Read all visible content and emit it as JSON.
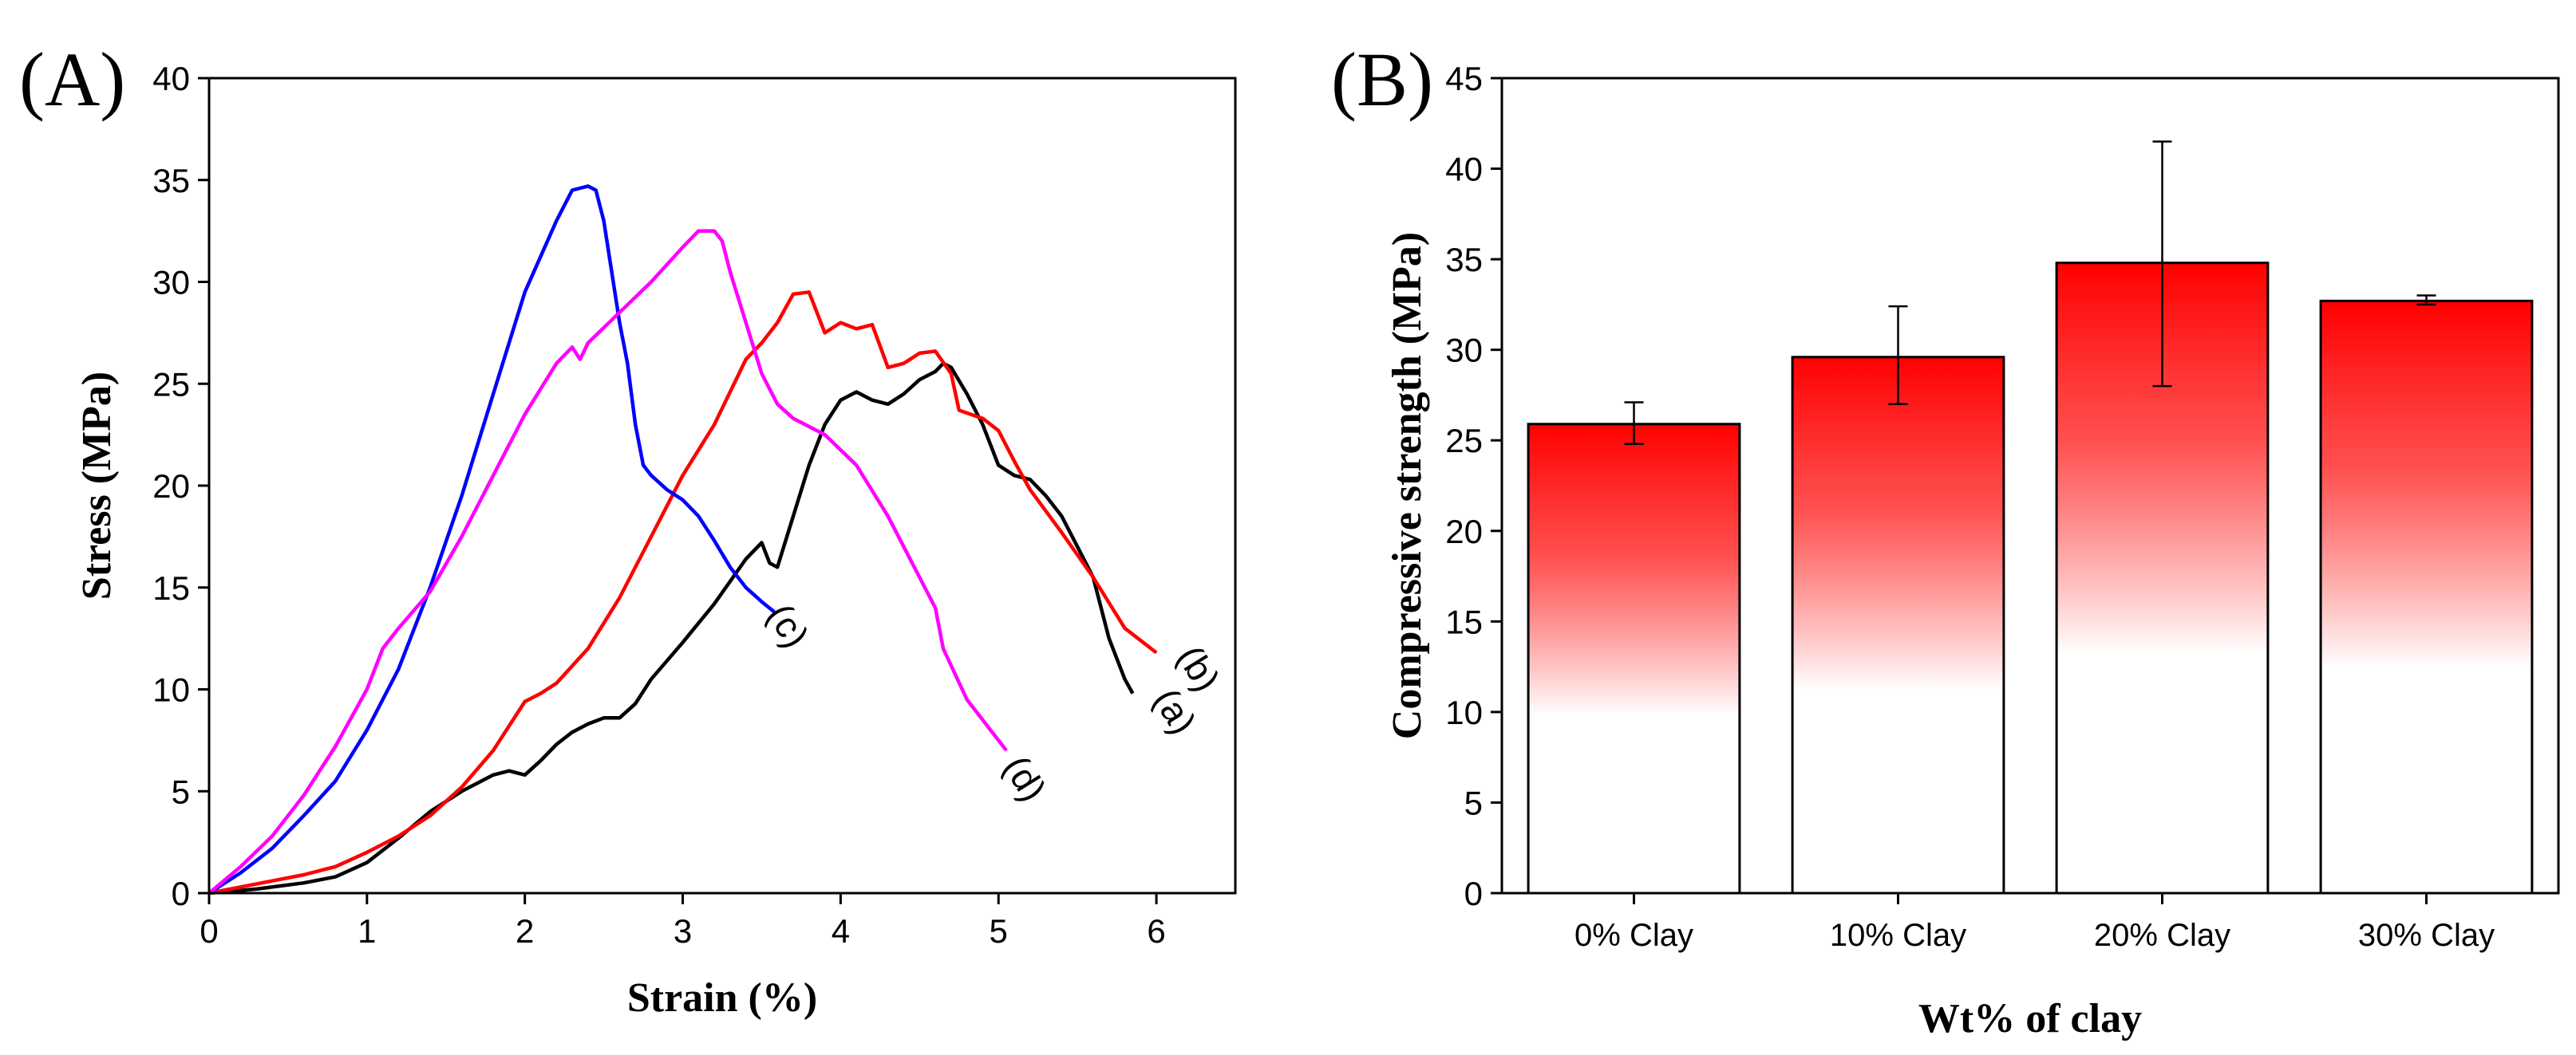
{
  "chart_data": [
    {
      "type": "line",
      "panel_label": "(A)",
      "xlabel": "Strain (%)",
      "ylabel": "Stress (MPa)",
      "xlim": [
        0,
        6.5
      ],
      "ylim": [
        0,
        40
      ],
      "xticks": [
        0,
        1,
        2,
        3,
        4,
        5,
        6
      ],
      "yticks": [
        0,
        5,
        10,
        15,
        20,
        25,
        30,
        35,
        40
      ],
      "grid": false,
      "series": [
        {
          "label": "(a)",
          "color": "#000000",
          "label_at": [
            6.05,
            8.6
          ],
          "points": [
            [
              0,
              0
            ],
            [
              0.3,
              0.2
            ],
            [
              0.6,
              0.5
            ],
            [
              0.8,
              0.8
            ],
            [
              1.0,
              1.5
            ],
            [
              1.2,
              2.7
            ],
            [
              1.4,
              4.0
            ],
            [
              1.6,
              5.0
            ],
            [
              1.8,
              5.8
            ],
            [
              1.9,
              6.0
            ],
            [
              2.0,
              5.8
            ],
            [
              2.1,
              6.5
            ],
            [
              2.2,
              7.3
            ],
            [
              2.3,
              7.9
            ],
            [
              2.4,
              8.3
            ],
            [
              2.5,
              8.6
            ],
            [
              2.6,
              8.6
            ],
            [
              2.7,
              9.3
            ],
            [
              2.8,
              10.5
            ],
            [
              3.0,
              12.3
            ],
            [
              3.2,
              14.2
            ],
            [
              3.4,
              16.4
            ],
            [
              3.5,
              17.2
            ],
            [
              3.55,
              16.2
            ],
            [
              3.6,
              16.0
            ],
            [
              3.7,
              18.5
            ],
            [
              3.8,
              21.0
            ],
            [
              3.9,
              23.0
            ],
            [
              4.0,
              24.2
            ],
            [
              4.1,
              24.6
            ],
            [
              4.2,
              24.2
            ],
            [
              4.3,
              24.0
            ],
            [
              4.4,
              24.5
            ],
            [
              4.5,
              25.2
            ],
            [
              4.6,
              25.6
            ],
            [
              4.65,
              26.0
            ],
            [
              4.7,
              25.8
            ],
            [
              4.8,
              24.5
            ],
            [
              4.9,
              23.0
            ],
            [
              5.0,
              21.0
            ],
            [
              5.1,
              20.5
            ],
            [
              5.2,
              20.3
            ],
            [
              5.3,
              19.5
            ],
            [
              5.4,
              18.5
            ],
            [
              5.5,
              17.0
            ],
            [
              5.6,
              15.5
            ],
            [
              5.7,
              12.5
            ],
            [
              5.8,
              10.5
            ],
            [
              5.85,
              9.8
            ]
          ]
        },
        {
          "label": "(b)",
          "color": "#ff0000",
          "label_at": [
            6.2,
            10.7
          ],
          "points": [
            [
              0,
              0
            ],
            [
              0.2,
              0.3
            ],
            [
              0.4,
              0.6
            ],
            [
              0.6,
              0.9
            ],
            [
              0.8,
              1.3
            ],
            [
              1.0,
              2.0
            ],
            [
              1.2,
              2.8
            ],
            [
              1.4,
              3.8
            ],
            [
              1.6,
              5.2
            ],
            [
              1.8,
              7.0
            ],
            [
              2.0,
              9.4
            ],
            [
              2.1,
              9.8
            ],
            [
              2.2,
              10.3
            ],
            [
              2.4,
              12.0
            ],
            [
              2.6,
              14.5
            ],
            [
              2.8,
              17.5
            ],
            [
              3.0,
              20.5
            ],
            [
              3.2,
              23.0
            ],
            [
              3.4,
              26.2
            ],
            [
              3.5,
              27.0
            ],
            [
              3.6,
              28.0
            ],
            [
              3.7,
              29.4
            ],
            [
              3.8,
              29.5
            ],
            [
              3.85,
              28.5
            ],
            [
              3.9,
              27.5
            ],
            [
              4.0,
              28.0
            ],
            [
              4.1,
              27.7
            ],
            [
              4.2,
              27.9
            ],
            [
              4.3,
              25.8
            ],
            [
              4.4,
              26.0
            ],
            [
              4.5,
              26.5
            ],
            [
              4.6,
              26.6
            ],
            [
              4.7,
              25.5
            ],
            [
              4.75,
              23.7
            ],
            [
              4.9,
              23.3
            ],
            [
              5.0,
              22.7
            ],
            [
              5.1,
              21.2
            ],
            [
              5.2,
              19.8
            ],
            [
              5.4,
              17.7
            ],
            [
              5.6,
              15.5
            ],
            [
              5.8,
              13.0
            ],
            [
              6.0,
              11.8
            ]
          ]
        },
        {
          "label": "(c)",
          "color": "#0000ff",
          "label_at": [
            3.6,
            12.8
          ],
          "points": [
            [
              0,
              0
            ],
            [
              0.2,
              1.0
            ],
            [
              0.4,
              2.2
            ],
            [
              0.6,
              3.8
            ],
            [
              0.8,
              5.5
            ],
            [
              1.0,
              8.0
            ],
            [
              1.2,
              11.0
            ],
            [
              1.4,
              15.0
            ],
            [
              1.6,
              19.5
            ],
            [
              1.8,
              24.5
            ],
            [
              2.0,
              29.5
            ],
            [
              2.2,
              33.0
            ],
            [
              2.3,
              34.5
            ],
            [
              2.4,
              34.7
            ],
            [
              2.45,
              34.5
            ],
            [
              2.5,
              33.0
            ],
            [
              2.55,
              30.5
            ],
            [
              2.6,
              28.0
            ],
            [
              2.65,
              26.0
            ],
            [
              2.7,
              23.0
            ],
            [
              2.75,
              21.0
            ],
            [
              2.8,
              20.5
            ],
            [
              2.9,
              19.8
            ],
            [
              3.0,
              19.3
            ],
            [
              3.1,
              18.5
            ],
            [
              3.2,
              17.3
            ],
            [
              3.3,
              16.0
            ],
            [
              3.4,
              15.0
            ],
            [
              3.5,
              14.3
            ],
            [
              3.58,
              13.8
            ]
          ]
        },
        {
          "label": "(d)",
          "color": "#ff00ff",
          "label_at": [
            5.1,
            5.3
          ],
          "points": [
            [
              0,
              0
            ],
            [
              0.2,
              1.3
            ],
            [
              0.4,
              2.8
            ],
            [
              0.6,
              4.8
            ],
            [
              0.8,
              7.2
            ],
            [
              1.0,
              10.0
            ],
            [
              1.1,
              12.0
            ],
            [
              1.2,
              13.0
            ],
            [
              1.4,
              14.8
            ],
            [
              1.6,
              17.5
            ],
            [
              1.8,
              20.5
            ],
            [
              2.0,
              23.5
            ],
            [
              2.2,
              26.0
            ],
            [
              2.3,
              26.8
            ],
            [
              2.35,
              26.2
            ],
            [
              2.4,
              27.0
            ],
            [
              2.6,
              28.5
            ],
            [
              2.8,
              30.0
            ],
            [
              3.0,
              31.7
            ],
            [
              3.1,
              32.5
            ],
            [
              3.2,
              32.5
            ],
            [
              3.25,
              32.0
            ],
            [
              3.3,
              30.5
            ],
            [
              3.4,
              28.0
            ],
            [
              3.5,
              25.5
            ],
            [
              3.6,
              24.0
            ],
            [
              3.7,
              23.3
            ],
            [
              3.9,
              22.5
            ],
            [
              4.1,
              21.0
            ],
            [
              4.3,
              18.5
            ],
            [
              4.5,
              15.5
            ],
            [
              4.6,
              14.0
            ],
            [
              4.65,
              12.0
            ],
            [
              4.8,
              9.5
            ],
            [
              4.95,
              8.0
            ],
            [
              5.05,
              7.0
            ]
          ]
        }
      ]
    },
    {
      "type": "bar",
      "panel_label": "(B)",
      "xlabel": "Wt% of clay",
      "ylabel": "Compressive strength (MPa)",
      "categories": [
        "0% Clay",
        "10% Clay",
        "20% Clay",
        "30% Clay"
      ],
      "values": [
        25.9,
        29.6,
        34.8,
        32.7
      ],
      "error_low": [
        24.8,
        27.0,
        28.0,
        32.5
      ],
      "error_high": [
        27.1,
        32.4,
        41.5,
        33.0
      ],
      "ylim": [
        0,
        45
      ],
      "yticks": [
        0,
        5,
        10,
        15,
        20,
        25,
        30,
        35,
        40,
        45
      ],
      "bar_color": "#ff0000",
      "grid": false
    }
  ]
}
